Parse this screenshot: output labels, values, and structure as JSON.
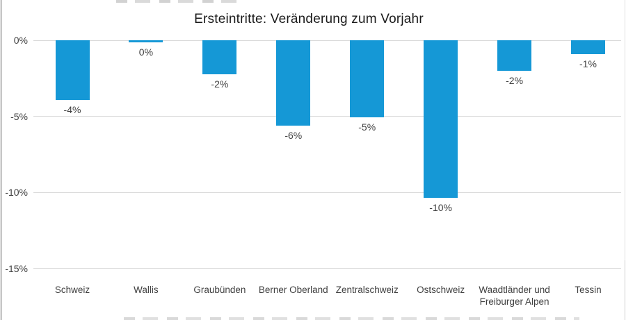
{
  "chart_data": {
    "type": "bar",
    "title": "Ersteintritte: Veränderung zum Vorjahr",
    "categories": [
      "Schweiz",
      "Wallis",
      "Graubünden",
      "Berner Oberland",
      "Zentralschweiz",
      "Ostschweiz",
      "Waadtländer und Freiburger Alpen",
      "Tessin"
    ],
    "values": [
      -4,
      0,
      -2,
      -6,
      -5,
      -10,
      -2,
      -1
    ],
    "precise_values": [
      -3.9,
      -0.15,
      -2.25,
      -5.6,
      -5.05,
      -10.35,
      -2.0,
      -0.9
    ],
    "data_labels": [
      "-4%",
      "0%",
      "-2%",
      "-6%",
      "-5%",
      "-10%",
      "-2%",
      "-1%"
    ],
    "xlabel": "",
    "ylabel": "",
    "y_ticks": [
      {
        "label": "0%",
        "value": 0
      },
      {
        "label": "-5%",
        "value": -5
      },
      {
        "label": "-10%",
        "value": -10
      },
      {
        "label": "-15%",
        "value": -15
      }
    ],
    "ylim": [
      -15,
      0
    ],
    "grid": true,
    "legend": null,
    "colors": {
      "bar": "#1598d6",
      "gridline": "#d9d9d9",
      "tick_label": "#404040",
      "data_label": "#404040",
      "category_label": "#404040",
      "title": "#1a1a1a"
    }
  }
}
